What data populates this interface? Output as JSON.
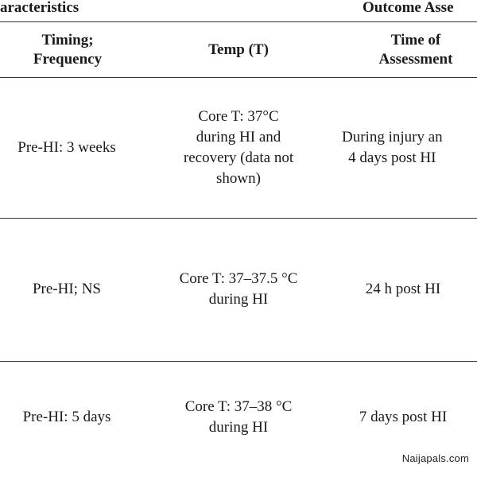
{
  "table": {
    "group_headers": [
      "aracteristics",
      "Outcome Asse"
    ],
    "column_headers": [
      "Timing;\nFrequency",
      "Temp (T)",
      "Time of\nAssessment"
    ],
    "rows": [
      {
        "timing": "Pre-HI: 3 weeks",
        "temp": "Core T: 37°C\nduring HI and\nrecovery (data not\nshown)",
        "assessment": "During injury an\n4 days post HI"
      },
      {
        "timing": "Pre-HI; NS",
        "temp": "Core T: 37–37.5 °C\nduring HI",
        "assessment": "24 h post HI"
      },
      {
        "timing": "Pre-HI: 5 days",
        "temp": "Core T: 37–38 °C\nduring HI",
        "assessment": "7 days post HI"
      }
    ]
  },
  "watermark": "Naijapals.com"
}
